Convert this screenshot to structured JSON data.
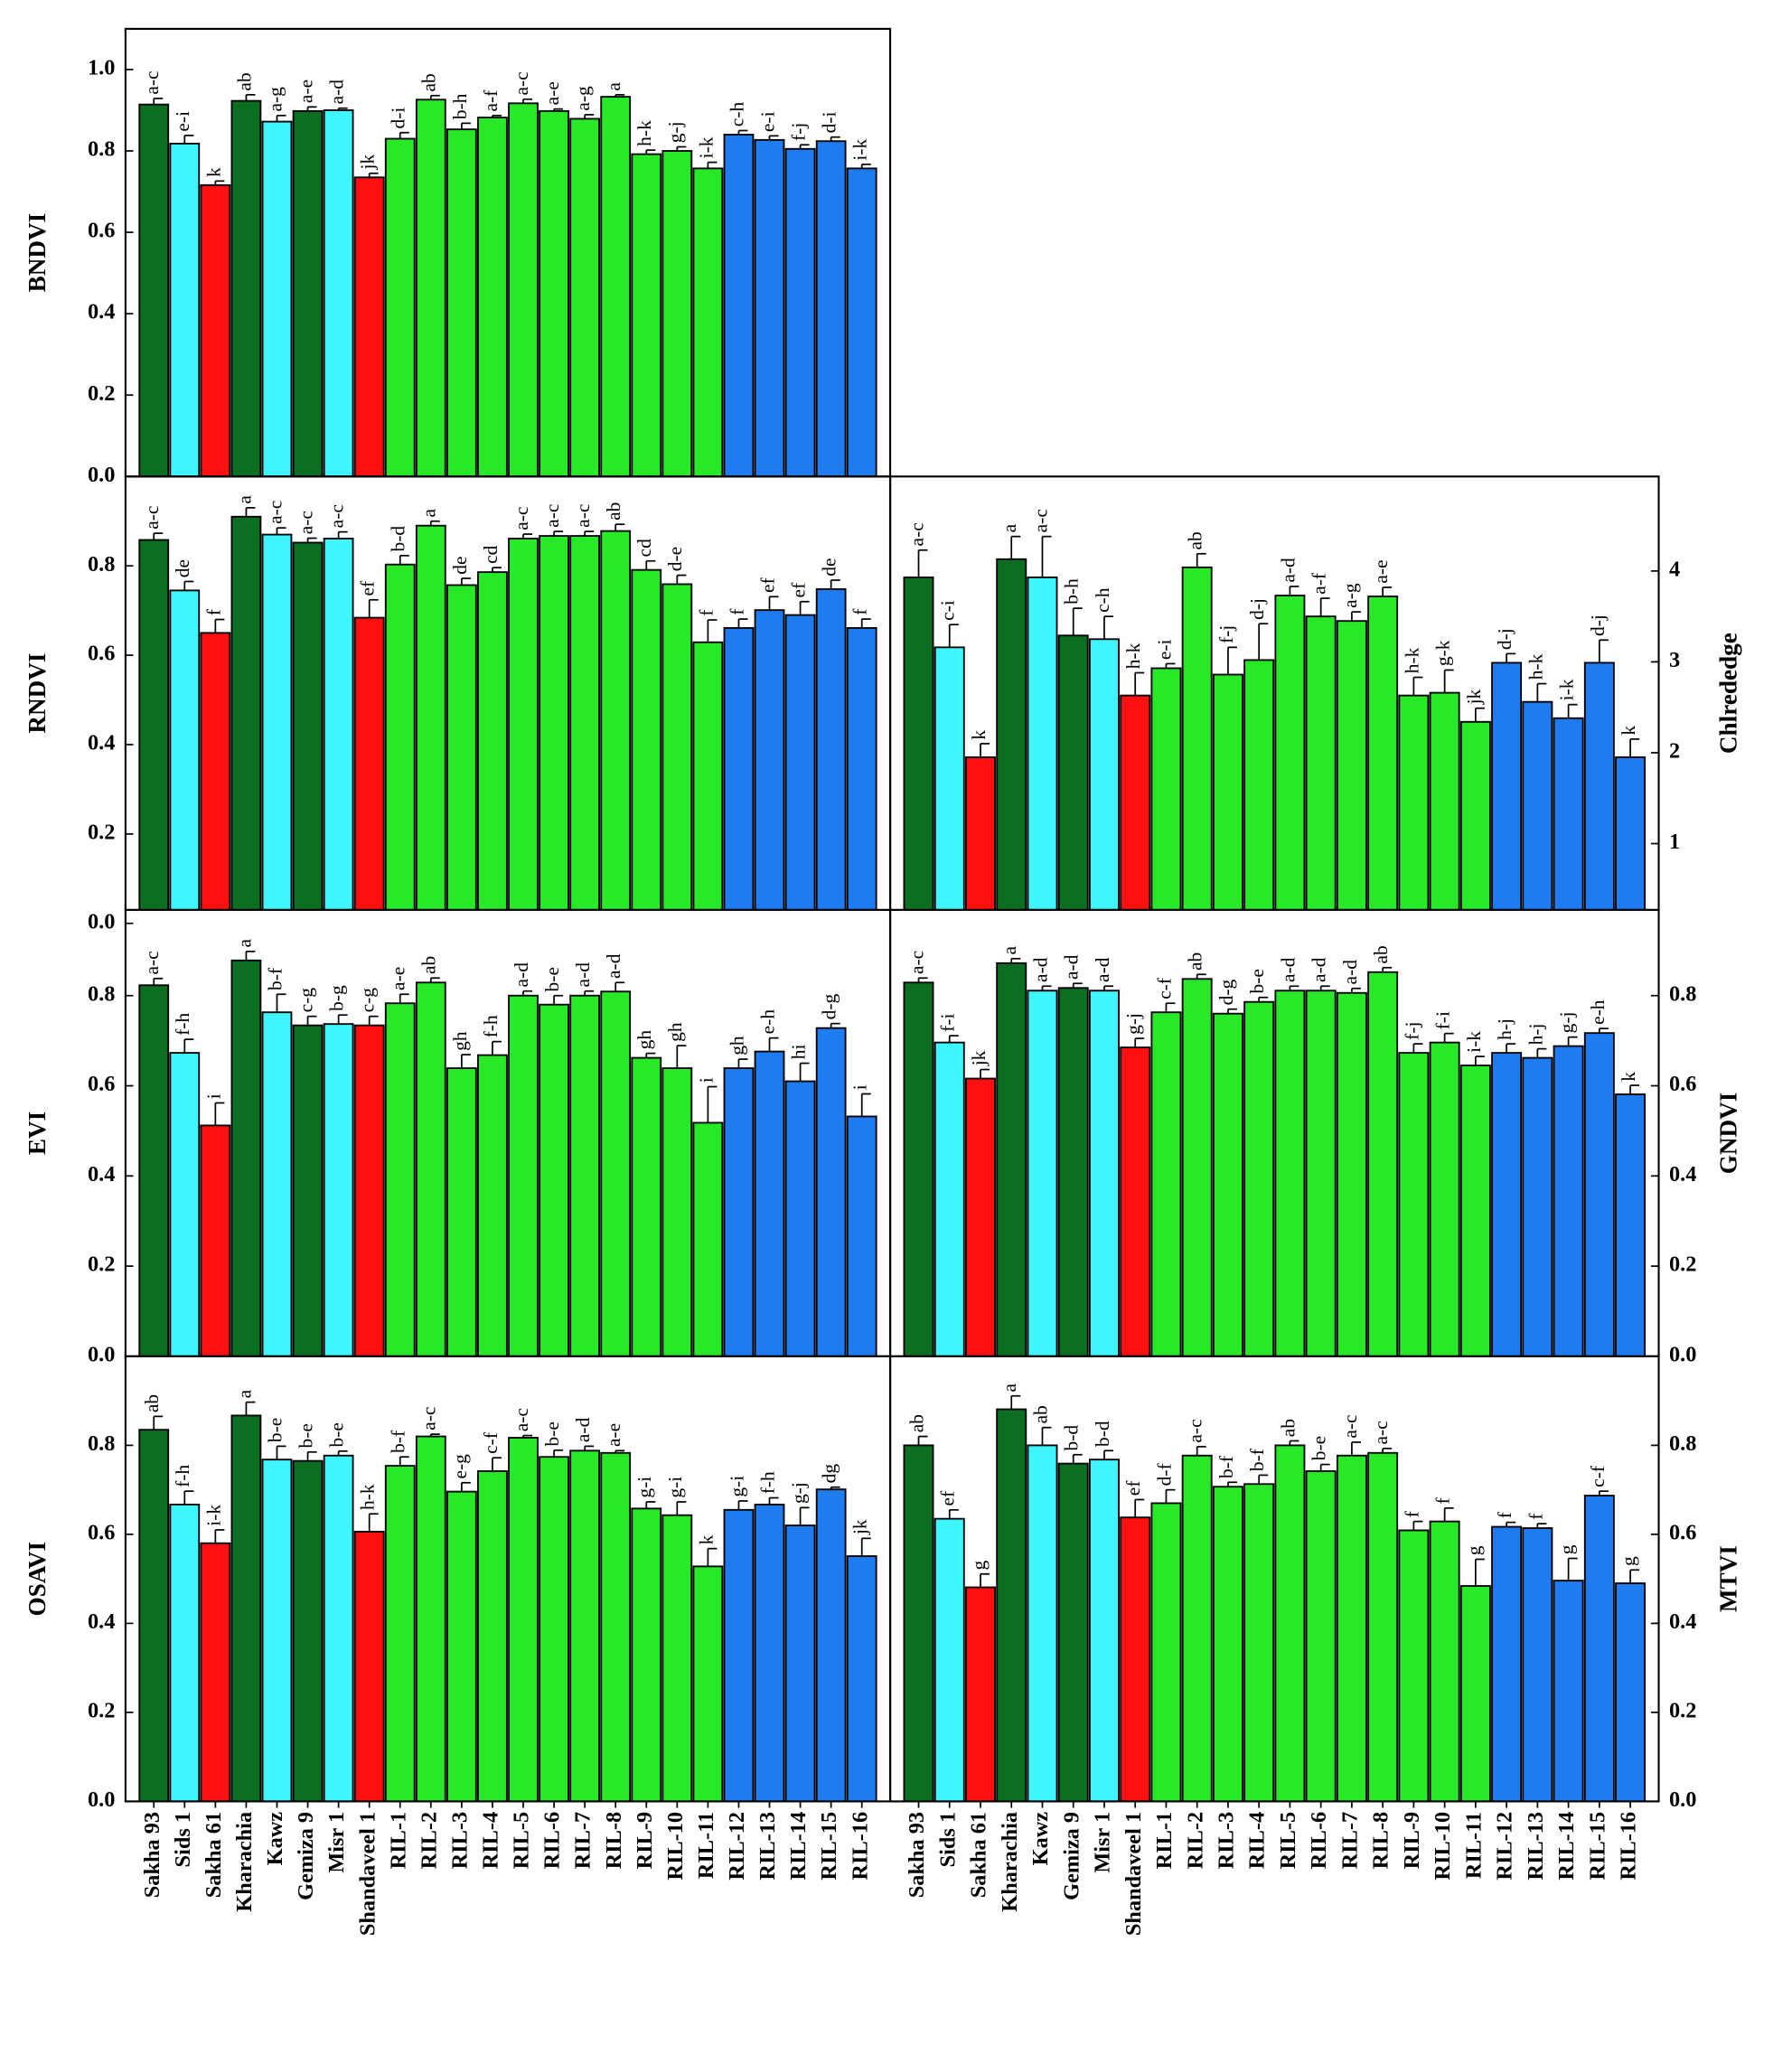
{
  "chart_data": [
    {
      "type": "bar",
      "ylabel": "BNDVI",
      "yaxis_position": "left",
      "values": [
        0.914,
        0.818,
        0.716,
        0.923,
        0.872,
        0.898,
        0.9,
        0.735,
        0.83,
        0.926,
        0.853,
        0.882,
        0.917,
        0.898,
        0.879,
        0.933,
        0.792,
        0.8,
        0.757,
        0.84,
        0.827,
        0.805,
        0.824,
        0.757
      ],
      "errors": [
        0.015,
        0.02,
        0.01,
        0.015,
        0.015,
        0.01,
        0.005,
        0.01,
        0.015,
        0.01,
        0.015,
        0.005,
        0.01,
        0.005,
        0.01,
        0.005,
        0.01,
        0.01,
        0.015,
        0.01,
        0.01,
        0.01,
        0.01,
        0.01
      ],
      "letters": [
        "a-c",
        "e-i",
        "k",
        "ab",
        "a-g",
        "a-e",
        "a-d",
        "jk",
        "d-i",
        "ab",
        "b-h",
        "a-f",
        "a-c",
        "a-e",
        "a-g",
        "a",
        "h-k",
        "g-j",
        "i-k",
        "c-h",
        "e-i",
        "f-j",
        "d-i",
        "i-k"
      ],
      "colors": [
        "#0b6e21",
        "#3ff5ff",
        "#ff1010",
        "#0b6e21",
        "#3ff5ff",
        "#0b6e21",
        "#3ff5ff",
        "#ff1010",
        "#28e828",
        "#28e828",
        "#28e828",
        "#28e828",
        "#28e828",
        "#28e828",
        "#28e828",
        "#28e828",
        "#28e828",
        "#28e828",
        "#28e828",
        "#1e7cf0",
        "#1e7cf0",
        "#1e7cf0",
        "#1e7cf0",
        "#1e7cf0"
      ],
      "ylim": [
        0,
        1.1
      ],
      "yticks": [
        {
          "value": 0,
          "label": "0.0"
        },
        {
          "value": 0.2,
          "label": "0.2"
        },
        {
          "value": 0.4,
          "label": "0.4"
        },
        {
          "value": 0.6,
          "label": "0.6"
        },
        {
          "value": 0.8,
          "label": "0.8"
        },
        {
          "value": 1.0,
          "label": "1.0"
        }
      ]
    },
    {
      "type": "bar",
      "ylabel": "RNDVI",
      "yaxis_position": "left",
      "values": [
        0.858,
        0.745,
        0.65,
        0.91,
        0.87,
        0.852,
        0.861,
        0.684,
        0.803,
        0.89,
        0.757,
        0.786,
        0.861,
        0.867,
        0.867,
        0.878,
        0.791,
        0.759,
        0.629,
        0.661,
        0.701,
        0.69,
        0.748,
        0.661
      ],
      "errors": [
        0.015,
        0.02,
        0.03,
        0.02,
        0.015,
        0.01,
        0.015,
        0.04,
        0.02,
        0.01,
        0.015,
        0.01,
        0.01,
        0.01,
        0.01,
        0.015,
        0.02,
        0.02,
        0.05,
        0.02,
        0.03,
        0.03,
        0.02,
        0.02
      ],
      "letters": [
        "a-c",
        "de",
        "f",
        "a",
        "a-c",
        "a-c",
        "a-c",
        "ef",
        "b-d",
        "a",
        "de",
        "cd",
        "a-c",
        "a-c",
        "a-c",
        "ab",
        "cd",
        "d-e",
        "f",
        "f",
        "ef",
        "ef",
        "de",
        "f"
      ],
      "colors": [
        "#0b6e21",
        "#3ff5ff",
        "#ff1010",
        "#0b6e21",
        "#3ff5ff",
        "#0b6e21",
        "#3ff5ff",
        "#ff1010",
        "#28e828",
        "#28e828",
        "#28e828",
        "#28e828",
        "#28e828",
        "#28e828",
        "#28e828",
        "#28e828",
        "#28e828",
        "#28e828",
        "#28e828",
        "#1e7cf0",
        "#1e7cf0",
        "#1e7cf0",
        "#1e7cf0",
        "#1e7cf0"
      ],
      "ylim": [
        0.03,
        1.0
      ],
      "yticks": [
        {
          "value": 0,
          "label": "0.0"
        },
        {
          "value": 0.2,
          "label": "0.2"
        },
        {
          "value": 0.4,
          "label": "0.4"
        },
        {
          "value": 0.6,
          "label": "0.6"
        },
        {
          "value": 0.8,
          "label": "0.8"
        }
      ]
    },
    {
      "type": "bar",
      "ylabel": "Chlrededge",
      "yaxis_position": "right",
      "values": [
        3.93,
        3.16,
        1.95,
        4.13,
        3.93,
        3.29,
        3.25,
        2.63,
        2.93,
        4.04,
        2.86,
        3.02,
        3.73,
        3.5,
        3.45,
        3.72,
        2.63,
        2.66,
        2.34,
        2.99,
        2.56,
        2.38,
        2.99,
        1.95
      ],
      "errors": [
        0.3,
        0.25,
        0.15,
        0.25,
        0.45,
        0.3,
        0.25,
        0.25,
        0.05,
        0.15,
        0.3,
        0.4,
        0.1,
        0.2,
        0.1,
        0.1,
        0.2,
        0.25,
        0.15,
        0.1,
        0.2,
        0.15,
        0.25,
        0.2
      ],
      "letters": [
        "a-c",
        "c-i",
        "k",
        "a",
        "a-c",
        "b-h",
        "c-h",
        "h-k",
        "e-i",
        "ab",
        "f-j",
        "d-j",
        "a-d",
        "a-f",
        "a-g",
        "a-e",
        "h-k",
        "g-k",
        "jk",
        "d-j",
        "h-k",
        "i-k",
        "d-j",
        "k"
      ],
      "colors": [
        "#0b6e21",
        "#3ff5ff",
        "#ff1010",
        "#0b6e21",
        "#3ff5ff",
        "#0b6e21",
        "#3ff5ff",
        "#ff1010",
        "#28e828",
        "#28e828",
        "#28e828",
        "#28e828",
        "#28e828",
        "#28e828",
        "#28e828",
        "#28e828",
        "#28e828",
        "#28e828",
        "#28e828",
        "#1e7cf0",
        "#1e7cf0",
        "#1e7cf0",
        "#1e7cf0",
        "#1e7cf0"
      ],
      "ylim": [
        0.27,
        5.04
      ],
      "yticks": [
        1,
        2,
        3,
        4
      ]
    },
    {
      "type": "bar",
      "ylabel": "EVI",
      "yaxis_position": "left",
      "values": [
        0.823,
        0.673,
        0.512,
        0.878,
        0.763,
        0.734,
        0.737,
        0.734,
        0.783,
        0.829,
        0.639,
        0.668,
        0.8,
        0.78,
        0.8,
        0.809,
        0.662,
        0.639,
        0.518,
        0.639,
        0.676,
        0.61,
        0.728,
        0.532
      ],
      "errors": [
        0.015,
        0.03,
        0.05,
        0.02,
        0.04,
        0.02,
        0.02,
        0.02,
        0.02,
        0.01,
        0.03,
        0.03,
        0.01,
        0.02,
        0.01,
        0.02,
        0.01,
        0.05,
        0.08,
        0.02,
        0.03,
        0.04,
        0.01,
        0.05
      ],
      "letters": [
        "a-c",
        "f-h",
        "i",
        "a",
        "b-f",
        "c-g",
        "b-g",
        "c-g",
        "a-e",
        "ab",
        "gh",
        "f-h",
        "a-d",
        "b-e",
        "a-d",
        "a-d",
        "gh",
        "gh",
        "i",
        "gh",
        "e-h",
        "hi",
        "d-g",
        "i"
      ],
      "colors": [
        "#0b6e21",
        "#3ff5ff",
        "#ff1010",
        "#0b6e21",
        "#3ff5ff",
        "#0b6e21",
        "#3ff5ff",
        "#ff1010",
        "#28e828",
        "#28e828",
        "#28e828",
        "#28e828",
        "#28e828",
        "#28e828",
        "#28e828",
        "#28e828",
        "#28e828",
        "#28e828",
        "#28e828",
        "#1e7cf0",
        "#1e7cf0",
        "#1e7cf0",
        "#1e7cf0",
        "#1e7cf0"
      ],
      "ylim": [
        0,
        0.99
      ],
      "yticks": [
        {
          "value": 0,
          "label": "0.0"
        },
        {
          "value": 0.2,
          "label": "0.2"
        },
        {
          "value": 0.4,
          "label": "0.4"
        },
        {
          "value": 0.6,
          "label": "0.6"
        },
        {
          "value": 0.8,
          "label": "0.8"
        }
      ]
    },
    {
      "type": "bar",
      "ylabel": "GNDVI",
      "yaxis_position": "right",
      "values": [
        0.829,
        0.696,
        0.616,
        0.872,
        0.811,
        0.817,
        0.811,
        0.685,
        0.763,
        0.837,
        0.76,
        0.786,
        0.811,
        0.811,
        0.806,
        0.852,
        0.673,
        0.696,
        0.645,
        0.673,
        0.662,
        0.688,
        0.717,
        0.581
      ],
      "errors": [
        0.01,
        0.015,
        0.02,
        0.01,
        0.01,
        0.01,
        0.01,
        0.02,
        0.02,
        0.01,
        0.01,
        0.01,
        0.01,
        0.01,
        0.01,
        0.01,
        0.02,
        0.02,
        0.02,
        0.02,
        0.02,
        0.02,
        0.01,
        0.02
      ],
      "letters": [
        "a-c",
        "f-i",
        "jk",
        "a",
        "a-d",
        "a-d",
        "a-d",
        "g-j",
        "c-f",
        "ab",
        "d-g",
        "b-e",
        "a-d",
        "a-d",
        "a-d",
        "ab",
        "f-j",
        "f-i",
        "i-k",
        "h-j",
        "h-j",
        "g-j",
        "e-h",
        "k"
      ],
      "colors": [
        "#0b6e21",
        "#3ff5ff",
        "#ff1010",
        "#0b6e21",
        "#3ff5ff",
        "#0b6e21",
        "#3ff5ff",
        "#ff1010",
        "#28e828",
        "#28e828",
        "#28e828",
        "#28e828",
        "#28e828",
        "#28e828",
        "#28e828",
        "#28e828",
        "#28e828",
        "#28e828",
        "#28e828",
        "#1e7cf0",
        "#1e7cf0",
        "#1e7cf0",
        "#1e7cf0",
        "#1e7cf0"
      ],
      "ylim": [
        0,
        0.99
      ],
      "yticks": [
        {
          "value": 0,
          "label": "0.0"
        },
        {
          "value": 0.2,
          "label": "0.2"
        },
        {
          "value": 0.4,
          "label": "0.4"
        },
        {
          "value": 0.6,
          "label": "0.6"
        },
        {
          "value": 0.8,
          "label": "0.8"
        }
      ]
    },
    {
      "type": "bar",
      "ylabel": "OSAVI",
      "yaxis_position": "left",
      "categories": [
        "Sakha 93",
        "Sids 1",
        "Sakha 61",
        "Kharachia",
        "Kawz",
        "Gemiza 9",
        "Misr 1",
        "Shandaveel 1",
        "RIL-1",
        "RIL-2",
        "RIL-3",
        "RIL-4",
        "RIL-5",
        "RIL-6",
        "RIL-7",
        "RIL-8",
        "RIL-9",
        "RIL-10",
        "RIL-11",
        "RIL-12",
        "RIL-13",
        "RIL-14",
        "RIL-15",
        "RIL-16"
      ],
      "values": [
        0.835,
        0.667,
        0.58,
        0.867,
        0.768,
        0.765,
        0.777,
        0.606,
        0.754,
        0.82,
        0.696,
        0.742,
        0.817,
        0.774,
        0.788,
        0.783,
        0.658,
        0.643,
        0.528,
        0.655,
        0.667,
        0.62,
        0.701,
        0.551
      ],
      "errors": [
        0.03,
        0.03,
        0.03,
        0.03,
        0.03,
        0.02,
        0.01,
        0.04,
        0.02,
        0.005,
        0.02,
        0.03,
        0.005,
        0.015,
        0.01,
        0.005,
        0.015,
        0.03,
        0.04,
        0.02,
        0.015,
        0.04,
        0.005,
        0.04
      ],
      "letters": [
        "ab",
        "f-h",
        "i-k",
        "a",
        "b-e",
        "b-e",
        "b-e",
        "h-k",
        "b-f",
        "a-c",
        "e-g",
        "c-f",
        "a-c",
        "b-e",
        "a-d",
        "a-e",
        "g-i",
        "g-i",
        "k",
        "g-i",
        "f-h",
        "g-j",
        "dg",
        "jk"
      ],
      "colors": [
        "#0b6e21",
        "#3ff5ff",
        "#ff1010",
        "#0b6e21",
        "#3ff5ff",
        "#0b6e21",
        "#3ff5ff",
        "#ff1010",
        "#28e828",
        "#28e828",
        "#28e828",
        "#28e828",
        "#28e828",
        "#28e828",
        "#28e828",
        "#28e828",
        "#28e828",
        "#28e828",
        "#28e828",
        "#1e7cf0",
        "#1e7cf0",
        "#1e7cf0",
        "#1e7cf0",
        "#1e7cf0"
      ],
      "ylim": [
        0,
        1.0
      ],
      "yticks": [
        {
          "value": 0,
          "label": "0.0"
        },
        {
          "value": 0.2,
          "label": "0.2"
        },
        {
          "value": 0.4,
          "label": "0.4"
        },
        {
          "value": 0.6,
          "label": "0.6"
        },
        {
          "value": 0.8,
          "label": "0.8"
        }
      ]
    },
    {
      "type": "bar",
      "ylabel": "MTVI",
      "yaxis_position": "right",
      "categories": [
        "Sakha 93",
        "Sids 1",
        "Sakha 61",
        "Kharachia",
        "Kawz",
        "Gemiza 9",
        "Misr 1",
        "Shandaveel 1",
        "RIL-1",
        "RIL-2",
        "RIL-3",
        "RIL-4",
        "RIL-5",
        "RIL-6",
        "RIL-7",
        "RIL-8",
        "RIL-9",
        "RIL-10",
        "RIL-11",
        "RIL-12",
        "RIL-13",
        "RIL-14",
        "RIL-15",
        "RIL-16"
      ],
      "values": [
        0.8,
        0.635,
        0.481,
        0.881,
        0.8,
        0.759,
        0.768,
        0.638,
        0.67,
        0.777,
        0.707,
        0.713,
        0.8,
        0.742,
        0.777,
        0.783,
        0.609,
        0.629,
        0.484,
        0.617,
        0.614,
        0.496,
        0.687,
        0.49
      ],
      "errors": [
        0.02,
        0.02,
        0.03,
        0.03,
        0.04,
        0.02,
        0.02,
        0.04,
        0.03,
        0.02,
        0.01,
        0.02,
        0.01,
        0.015,
        0.03,
        0.01,
        0.02,
        0.03,
        0.06,
        0.01,
        0.01,
        0.05,
        0.01,
        0.03
      ],
      "letters": [
        "ab",
        "ef",
        "g",
        "a",
        "ab",
        "b-d",
        "b-d",
        "ef",
        "d-f",
        "a-c",
        "b-f",
        "b-f",
        "ab",
        "b-e",
        "a-c",
        "a-c",
        "f",
        "f",
        "g",
        "f",
        "f",
        "g",
        "c-f",
        "g"
      ],
      "colors": [
        "#0b6e21",
        "#3ff5ff",
        "#ff1010",
        "#0b6e21",
        "#3ff5ff",
        "#0b6e21",
        "#3ff5ff",
        "#ff1010",
        "#28e828",
        "#28e828",
        "#28e828",
        "#28e828",
        "#28e828",
        "#28e828",
        "#28e828",
        "#28e828",
        "#28e828",
        "#28e828",
        "#28e828",
        "#1e7cf0",
        "#1e7cf0",
        "#1e7cf0",
        "#1e7cf0",
        "#1e7cf0"
      ],
      "ylim": [
        0,
        1.0
      ],
      "yticks": [
        {
          "value": 0,
          "label": "0.0"
        },
        {
          "value": 0.2,
          "label": "0.2"
        },
        {
          "value": 0.4,
          "label": "0.4"
        },
        {
          "value": 0.6,
          "label": "0.6"
        },
        {
          "value": 0.8,
          "label": "0.8"
        }
      ]
    }
  ]
}
